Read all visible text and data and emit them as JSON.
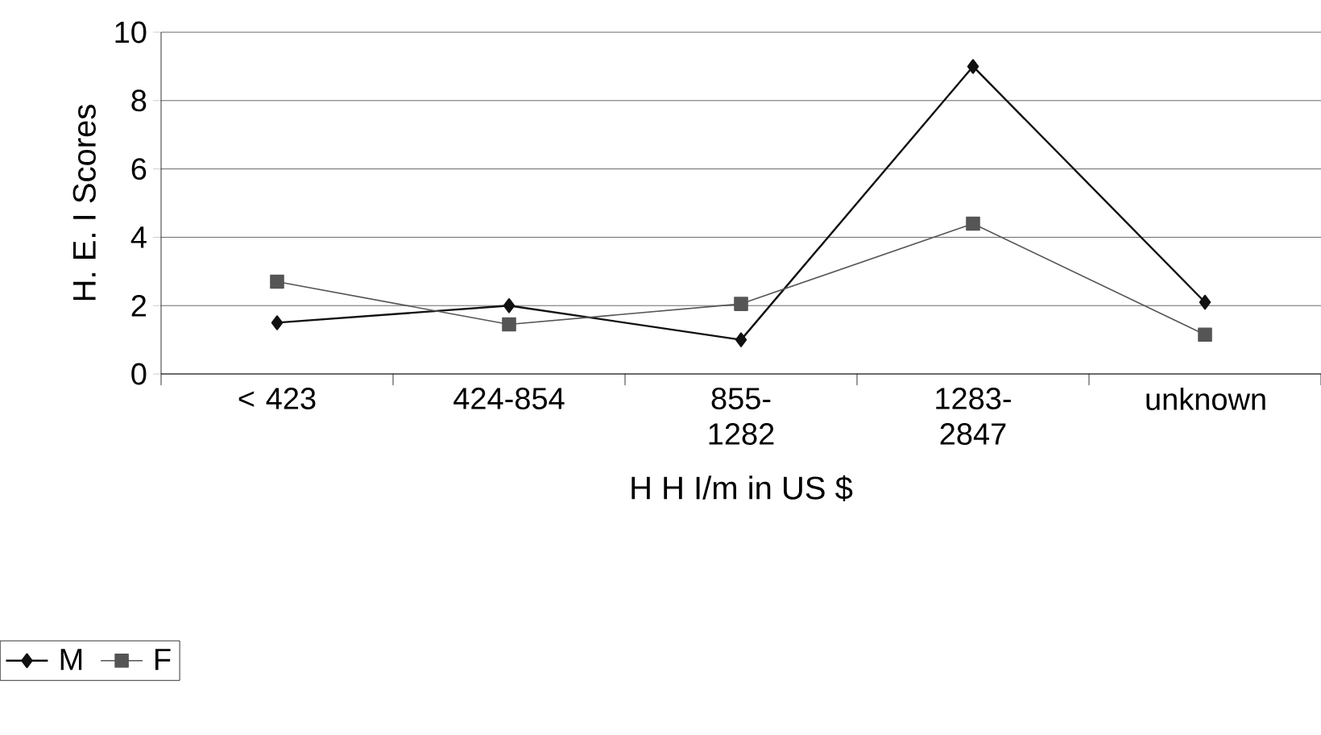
{
  "chart_data": {
    "type": "line",
    "xlabel": "H H I/m in US $",
    "ylabel": "H. E. I  Scores",
    "categories": [
      "< 423",
      "424-854",
      "855-1282",
      "1283-2847",
      "unknown"
    ],
    "series": [
      {
        "name": "M",
        "color": "#111111",
        "marker": "diamond",
        "values": [
          1.5,
          2.0,
          1.0,
          9.0,
          2.1
        ]
      },
      {
        "name": "F",
        "color": "#555555",
        "marker": "square",
        "values": [
          2.7,
          1.45,
          2.05,
          4.4,
          1.15
        ]
      }
    ],
    "ylim": [
      0,
      10
    ],
    "yticks": [
      0,
      2,
      4,
      6,
      8,
      10
    ],
    "grid": "y",
    "legend": "bottom left"
  }
}
